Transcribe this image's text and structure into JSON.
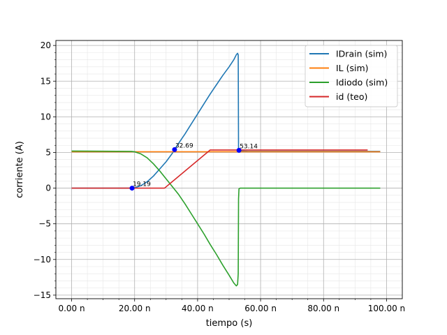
{
  "chart_data": {
    "type": "line",
    "xlabel": "tiempo (s)",
    "ylabel": "corriente (A)",
    "xlim": [
      -5,
      105
    ],
    "ylim": [
      -15.5,
      20.7
    ],
    "x_unit_suffix": "n",
    "x_ticks": [
      0,
      20,
      40,
      60,
      80,
      100
    ],
    "x_tick_labels": [
      "0.00",
      "20.00",
      "40.00",
      "60.00",
      "80.00",
      "100.00"
    ],
    "y_ticks": [
      -15,
      -10,
      -5,
      0,
      5,
      10,
      15,
      20
    ],
    "y_tick_labels": [
      "−15",
      "−10",
      "−5",
      "0",
      "5",
      "10",
      "15",
      "20"
    ],
    "grid": true,
    "minor_grid": true,
    "legend_position": "top-right",
    "series": [
      {
        "name": "IDrain (sim)",
        "color": "#1f77b4",
        "points": [
          [
            0,
            0
          ],
          [
            19,
            0
          ],
          [
            20,
            0.05
          ],
          [
            22,
            0.35
          ],
          [
            24,
            0.9
          ],
          [
            26,
            1.7
          ],
          [
            28,
            2.7
          ],
          [
            30,
            3.7
          ],
          [
            32,
            4.9
          ],
          [
            32.69,
            5.4
          ],
          [
            34,
            6.3
          ],
          [
            36,
            7.6
          ],
          [
            38,
            9.0
          ],
          [
            40,
            10.4
          ],
          [
            42,
            11.8
          ],
          [
            44,
            13.2
          ],
          [
            46,
            14.5
          ],
          [
            48,
            15.8
          ],
          [
            50,
            17.0
          ],
          [
            51.5,
            18.0
          ],
          [
            52.3,
            18.7
          ],
          [
            52.7,
            18.9
          ],
          [
            52.9,
            18.7
          ],
          [
            53.0,
            5.5
          ],
          [
            53.14,
            5.3
          ],
          [
            54,
            5.2
          ],
          [
            56,
            5.15
          ],
          [
            98,
            5.15
          ]
        ]
      },
      {
        "name": "IL (sim)",
        "color": "#ff7f0e",
        "points": [
          [
            0,
            5.1
          ],
          [
            98,
            5.1
          ]
        ]
      },
      {
        "name": "Idiodo (sim)",
        "color": "#2ca02c",
        "points": [
          [
            0,
            5.2
          ],
          [
            19,
            5.15
          ],
          [
            20,
            5.1
          ],
          [
            22,
            4.8
          ],
          [
            24,
            4.25
          ],
          [
            26,
            3.4
          ],
          [
            28,
            2.4
          ],
          [
            30,
            1.3
          ],
          [
            32,
            0.2
          ],
          [
            34,
            -0.9
          ],
          [
            36,
            -2.2
          ],
          [
            38,
            -3.6
          ],
          [
            40,
            -5.0
          ],
          [
            42,
            -6.4
          ],
          [
            44,
            -7.9
          ],
          [
            46,
            -9.3
          ],
          [
            48,
            -10.8
          ],
          [
            50,
            -12.2
          ],
          [
            51.5,
            -13.3
          ],
          [
            52.3,
            -13.7
          ],
          [
            52.7,
            -13.5
          ],
          [
            52.9,
            -12.0
          ],
          [
            53.0,
            -1.5
          ],
          [
            53.14,
            -0.1
          ],
          [
            53.5,
            0
          ],
          [
            98,
            0
          ]
        ]
      },
      {
        "name": "id (teo)",
        "color": "#d62728",
        "points": [
          [
            0,
            0
          ],
          [
            29.5,
            0
          ],
          [
            44,
            5.35
          ],
          [
            94,
            5.35
          ]
        ]
      }
    ],
    "markers": [
      {
        "x": 19.19,
        "y": 0,
        "label": "19.19"
      },
      {
        "x": 32.69,
        "y": 5.4,
        "label": "32.69"
      },
      {
        "x": 53.14,
        "y": 5.3,
        "label": "53.14"
      }
    ]
  }
}
